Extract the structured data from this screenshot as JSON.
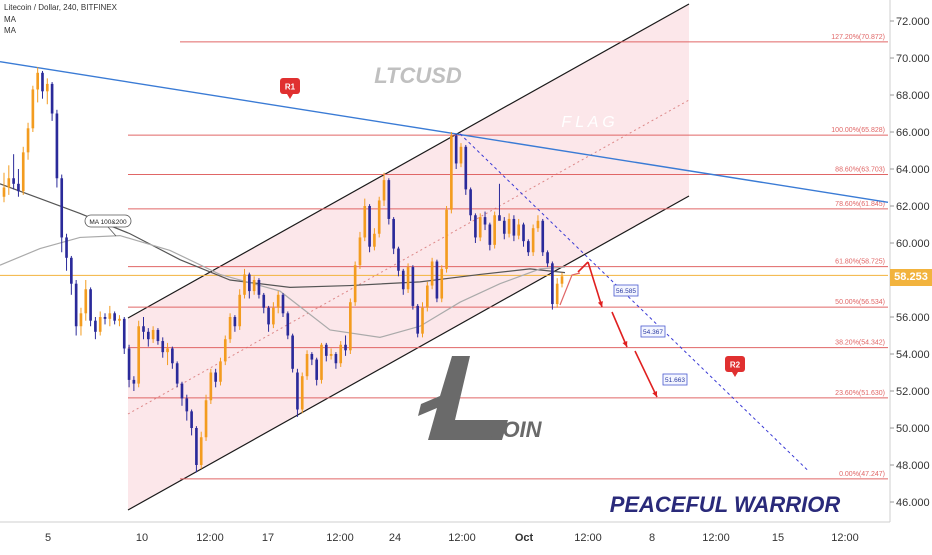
{
  "header": {
    "symbol_line": "Litecoin / Dollar, 240, BITFINEX",
    "indicator_1": "MA",
    "indicator_2": "MA"
  },
  "colors": {
    "up_candle": "#f39c1f",
    "down_candle": "#2a2a9a",
    "fib_line": "#e06666",
    "trend_line": "#3a7bd5",
    "channel_fill": "#fbe3e6",
    "current_price": "#f2b33d",
    "arrow": "#e02020"
  },
  "chart_data": {
    "type": "candlestick",
    "title": "LTCUSD",
    "watermark": "LTCUSD",
    "pattern_label": "F L A G",
    "author_label": "PEACEFUL WARRIOR",
    "logo_text": "ITCOIN",
    "ma_label": "MA 100&200",
    "current_price": "58.253",
    "ylim": [
      45.5,
      73
    ],
    "y_ticks": [
      "72.000",
      "70.000",
      "68.000",
      "66.000",
      "64.000",
      "62.000",
      "60.000",
      "58.000",
      "56.000",
      "54.000",
      "52.000",
      "50.000",
      "48.000",
      "46.000"
    ],
    "x_ticks": [
      "5",
      "10",
      "12:00",
      "17",
      "12:00",
      "24",
      "12:00",
      "Oct",
      "12:00",
      "8",
      "12:00",
      "15",
      "12:00"
    ],
    "fib_levels": [
      {
        "label": "127.20%(70.872)",
        "value": 70.872
      },
      {
        "label": "100.00%(65.828)",
        "value": 65.828
      },
      {
        "label": "88.60%(63.703)",
        "value": 63.703
      },
      {
        "label": "78.60%(61.845)",
        "value": 61.845
      },
      {
        "label": "61.80%(58.725)",
        "value": 58.725
      },
      {
        "label": "50.00%(56.534)",
        "value": 56.534
      },
      {
        "label": "38.20%(54.342)",
        "value": 54.342
      },
      {
        "label": "23.60%(51.630)",
        "value": 51.63
      },
      {
        "label": "0.00%(47.247)",
        "value": 47.247
      }
    ],
    "targets": [
      {
        "label": "56.585",
        "value": 56.585
      },
      {
        "label": "54.367",
        "value": 54.367
      },
      {
        "label": "51.663",
        "value": 51.663
      }
    ],
    "markers": [
      {
        "label": "R1"
      },
      {
        "label": "R2"
      }
    ],
    "candles": [
      [
        62.5,
        63.8,
        62.2,
        63.0
      ],
      [
        63.0,
        64.2,
        62.6,
        63.5
      ],
      [
        63.5,
        64.8,
        62.9,
        63.2
      ],
      [
        63.2,
        64.0,
        62.5,
        62.8
      ],
      [
        62.8,
        65.2,
        62.6,
        64.9
      ],
      [
        64.9,
        66.5,
        64.5,
        66.2
      ],
      [
        66.2,
        68.5,
        66.0,
        68.3
      ],
      [
        68.3,
        69.5,
        67.6,
        69.2
      ],
      [
        69.2,
        69.3,
        67.8,
        68.2
      ],
      [
        68.2,
        68.9,
        67.5,
        68.6
      ],
      [
        68.6,
        68.7,
        66.6,
        67.0
      ],
      [
        67.0,
        67.2,
        63.0,
        63.5
      ],
      [
        63.5,
        63.7,
        59.5,
        60.3
      ],
      [
        60.3,
        60.5,
        58.5,
        59.2
      ],
      [
        59.2,
        59.3,
        57.2,
        57.8
      ],
      [
        57.8,
        58.0,
        55.0,
        55.5
      ],
      [
        55.5,
        56.5,
        55.0,
        56.2
      ],
      [
        56.2,
        58.0,
        55.8,
        57.5
      ],
      [
        57.5,
        57.6,
        55.5,
        55.8
      ],
      [
        55.8,
        56.0,
        54.8,
        55.2
      ],
      [
        55.2,
        56.3,
        55.0,
        56.0
      ],
      [
        56.0,
        56.2,
        55.6,
        55.9
      ],
      [
        55.9,
        56.6,
        55.5,
        56.2
      ],
      [
        56.2,
        56.3,
        55.6,
        55.8
      ],
      [
        55.8,
        56.1,
        55.5,
        55.9
      ],
      [
        55.9,
        56.0,
        54.0,
        54.3
      ],
      [
        54.3,
        54.5,
        52.2,
        52.6
      ],
      [
        52.6,
        52.8,
        52.0,
        52.4
      ],
      [
        52.4,
        55.8,
        52.2,
        55.5
      ],
      [
        55.5,
        56.0,
        54.8,
        55.2
      ],
      [
        55.2,
        55.4,
        54.4,
        54.8
      ],
      [
        54.8,
        55.5,
        54.6,
        55.3
      ],
      [
        55.3,
        55.4,
        54.5,
        54.7
      ],
      [
        54.7,
        54.9,
        53.8,
        54.1
      ],
      [
        54.1,
        54.6,
        53.4,
        54.3
      ],
      [
        54.3,
        54.4,
        53.2,
        53.5
      ],
      [
        53.5,
        53.6,
        52.2,
        52.4
      ],
      [
        52.4,
        52.5,
        51.2,
        51.6
      ],
      [
        51.6,
        51.8,
        50.4,
        50.9
      ],
      [
        50.9,
        51.0,
        49.6,
        50.0
      ],
      [
        50.0,
        50.1,
        47.6,
        48.0
      ],
      [
        48.0,
        49.8,
        47.8,
        49.5
      ],
      [
        49.5,
        51.8,
        49.3,
        51.5
      ],
      [
        51.5,
        53.2,
        51.3,
        53.0
      ],
      [
        53.0,
        53.2,
        52.2,
        52.5
      ],
      [
        52.5,
        53.8,
        52.3,
        53.6
      ],
      [
        53.6,
        55.0,
        53.4,
        54.8
      ],
      [
        54.8,
        56.2,
        54.6,
        56.0
      ],
      [
        56.0,
        56.1,
        55.2,
        55.5
      ],
      [
        55.5,
        57.5,
        55.3,
        57.2
      ],
      [
        57.2,
        58.6,
        57.0,
        58.3
      ],
      [
        58.3,
        58.4,
        57.0,
        57.4
      ],
      [
        57.4,
        58.2,
        57.2,
        58.0
      ],
      [
        58.0,
        58.1,
        57.0,
        57.2
      ],
      [
        57.2,
        57.3,
        56.2,
        56.5
      ],
      [
        56.5,
        56.6,
        55.2,
        55.6
      ],
      [
        55.6,
        56.8,
        55.4,
        56.5
      ],
      [
        56.5,
        57.4,
        56.2,
        57.2
      ],
      [
        57.2,
        57.3,
        56.0,
        56.2
      ],
      [
        56.2,
        56.3,
        54.8,
        55.0
      ],
      [
        55.0,
        55.1,
        53.0,
        53.2
      ],
      [
        53.0,
        53.2,
        50.6,
        51.0
      ],
      [
        51.0,
        53.0,
        50.8,
        52.8
      ],
      [
        52.8,
        54.2,
        52.6,
        54.0
      ],
      [
        54.0,
        54.1,
        53.4,
        53.7
      ],
      [
        53.7,
        53.8,
        52.3,
        52.6
      ],
      [
        52.6,
        54.6,
        52.4,
        54.5
      ],
      [
        54.5,
        54.6,
        53.6,
        53.9
      ],
      [
        53.9,
        54.3,
        53.7,
        54.0
      ],
      [
        54.0,
        54.1,
        53.2,
        53.5
      ],
      [
        53.5,
        54.7,
        53.3,
        54.5
      ],
      [
        54.5,
        55.0,
        53.9,
        54.2
      ],
      [
        54.2,
        57.0,
        54.0,
        56.8
      ],
      [
        56.8,
        59.0,
        56.6,
        58.8
      ],
      [
        58.8,
        60.6,
        58.6,
        60.3
      ],
      [
        60.3,
        62.4,
        60.1,
        62.0
      ],
      [
        62.0,
        62.1,
        59.5,
        59.8
      ],
      [
        59.8,
        60.8,
        59.6,
        60.5
      ],
      [
        60.5,
        62.5,
        60.3,
        62.3
      ],
      [
        62.3,
        63.8,
        62.0,
        63.4
      ],
      [
        63.4,
        63.5,
        61.0,
        61.3
      ],
      [
        61.3,
        61.4,
        59.4,
        59.7
      ],
      [
        59.7,
        59.8,
        58.2,
        58.5
      ],
      [
        58.5,
        58.6,
        57.2,
        57.5
      ],
      [
        57.5,
        58.9,
        57.3,
        58.7
      ],
      [
        58.7,
        58.8,
        56.4,
        56.6
      ],
      [
        56.6,
        56.7,
        54.9,
        55.1
      ],
      [
        55.1,
        56.8,
        54.9,
        56.5
      ],
      [
        56.5,
        57.9,
        56.3,
        57.7
      ],
      [
        57.7,
        59.2,
        57.5,
        59.0
      ],
      [
        59.0,
        59.1,
        56.8,
        57.0
      ],
      [
        57.0,
        58.8,
        56.8,
        58.6
      ],
      [
        58.6,
        62.0,
        58.4,
        61.8
      ],
      [
        61.8,
        66.0,
        61.6,
        65.8
      ],
      [
        65.8,
        65.9,
        64.0,
        64.3
      ],
      [
        64.3,
        65.4,
        64.1,
        65.2
      ],
      [
        65.2,
        65.3,
        62.6,
        62.9
      ],
      [
        62.9,
        63.0,
        61.2,
        61.5
      ],
      [
        61.5,
        61.6,
        60.0,
        60.3
      ],
      [
        60.3,
        61.6,
        60.1,
        61.4
      ],
      [
        61.4,
        61.7,
        60.7,
        61.0
      ],
      [
        61.0,
        61.1,
        59.6,
        59.9
      ],
      [
        59.9,
        61.7,
        59.7,
        61.5
      ],
      [
        61.5,
        63.2,
        61.3,
        61.2
      ],
      [
        61.2,
        61.4,
        60.2,
        60.5
      ],
      [
        60.5,
        61.6,
        60.3,
        61.3
      ],
      [
        61.3,
        61.5,
        60.1,
        60.4
      ],
      [
        60.4,
        61.3,
        60.2,
        61.0
      ],
      [
        61.0,
        61.1,
        59.8,
        60.1
      ],
      [
        60.1,
        60.2,
        59.3,
        59.5
      ],
      [
        59.5,
        61.0,
        59.3,
        60.8
      ],
      [
        60.8,
        61.5,
        60.6,
        61.2
      ],
      [
        61.2,
        61.3,
        59.3,
        59.5
      ],
      [
        59.5,
        59.6,
        58.7,
        58.9
      ],
      [
        58.9,
        59.0,
        56.4,
        56.7
      ],
      [
        56.7,
        58.1,
        56.5,
        57.8
      ],
      [
        57.8,
        58.4,
        57.6,
        58.2
      ]
    ],
    "grid": false
  }
}
